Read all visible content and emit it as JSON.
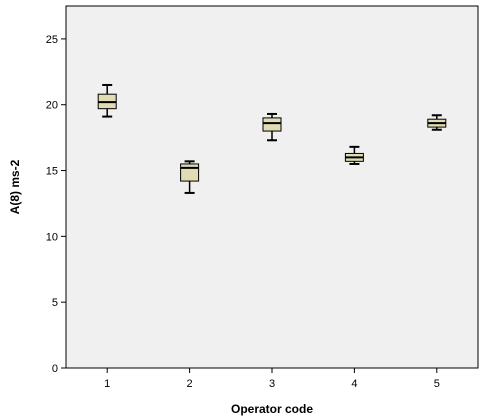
{
  "chart_data": {
    "type": "boxplot",
    "title": "",
    "xlabel": "Operator code",
    "ylabel": "A(8) ms-2",
    "ylim": [
      0,
      27.5
    ],
    "yticks": [
      0,
      5,
      10,
      15,
      20,
      25
    ],
    "grid": false,
    "plot_background": "#f0f0f0",
    "box_fill": "#e0dcb4",
    "categories": [
      "1",
      "2",
      "3",
      "4",
      "5"
    ],
    "boxes": [
      {
        "category": "1",
        "min": 19.1,
        "q1": 19.7,
        "median": 20.2,
        "q3": 20.8,
        "max": 21.5
      },
      {
        "category": "2",
        "min": 13.3,
        "q1": 14.2,
        "median": 15.2,
        "q3": 15.5,
        "max": 15.7
      },
      {
        "category": "3",
        "min": 17.3,
        "q1": 18.0,
        "median": 18.6,
        "q3": 19.0,
        "max": 19.3
      },
      {
        "category": "4",
        "min": 15.5,
        "q1": 15.7,
        "median": 16.0,
        "q3": 16.3,
        "max": 16.8
      },
      {
        "category": "5",
        "min": 18.1,
        "q1": 18.3,
        "median": 18.6,
        "q3": 18.9,
        "max": 19.2
      }
    ]
  }
}
